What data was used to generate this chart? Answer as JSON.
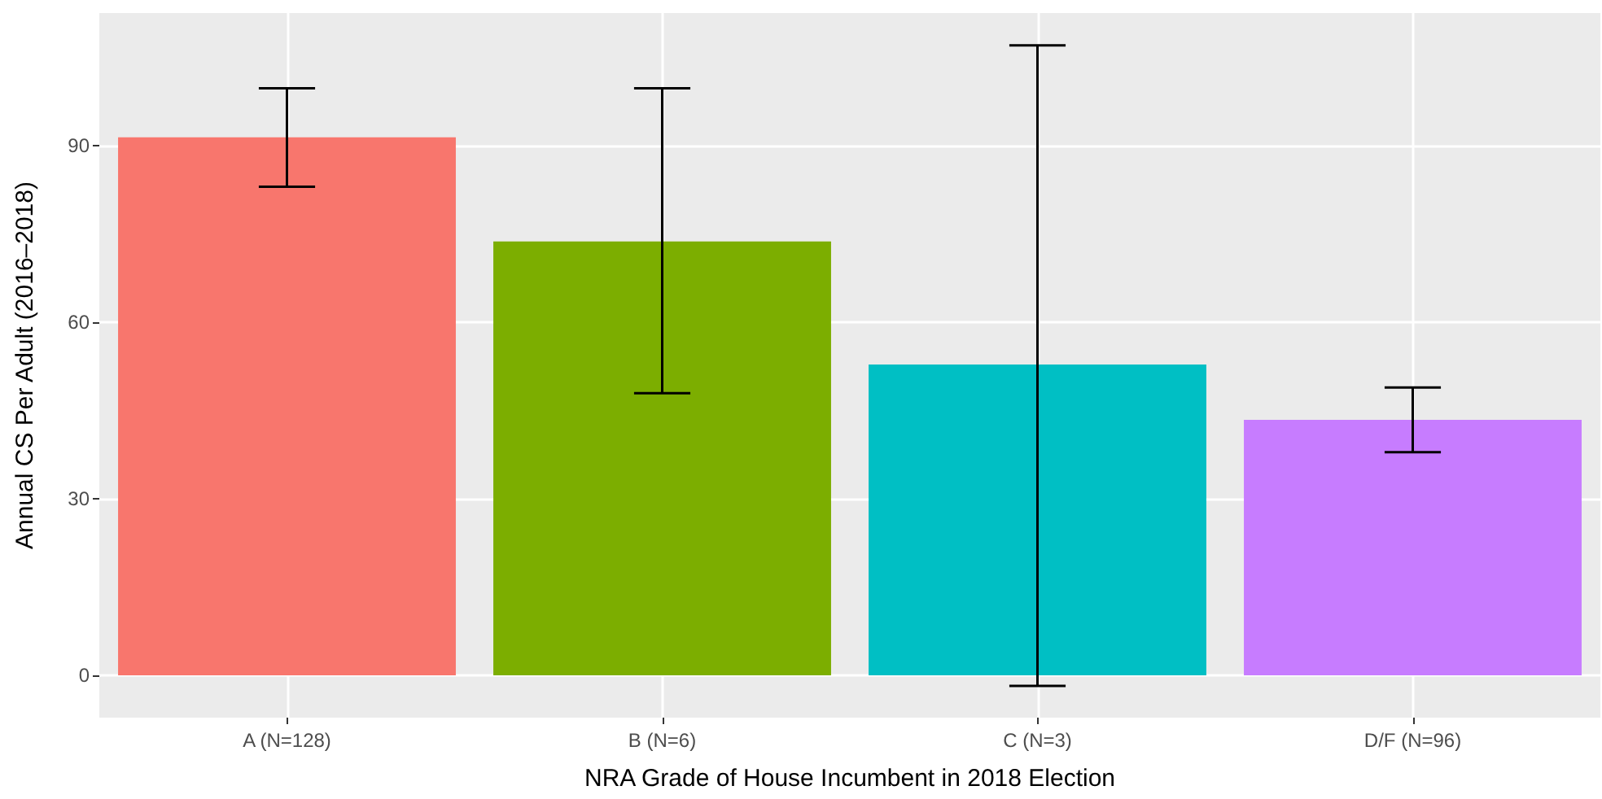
{
  "chart_data": {
    "type": "bar",
    "xlabel": "NRA Grade of House Incumbent in 2018 Election",
    "ylabel": "Annual CS Per Adult (2016–2018)",
    "categories": [
      "A (N=128)",
      "B (N=6)",
      "C (N=3)",
      "D/F (N=96)"
    ],
    "values": [
      91.4,
      73.7,
      52.8,
      43.4
    ],
    "colors": [
      "#f8766d",
      "#7cae00",
      "#00bfc4",
      "#c77cff"
    ],
    "errors": [
      [
        83.0,
        99.7
      ],
      [
        47.9,
        99.7
      ],
      [
        -1.8,
        107.0
      ],
      [
        37.9,
        48.9
      ]
    ],
    "ylim": [
      -7.2,
      112.5
    ],
    "yticks": [
      0,
      30,
      60,
      90
    ],
    "grid": true
  }
}
